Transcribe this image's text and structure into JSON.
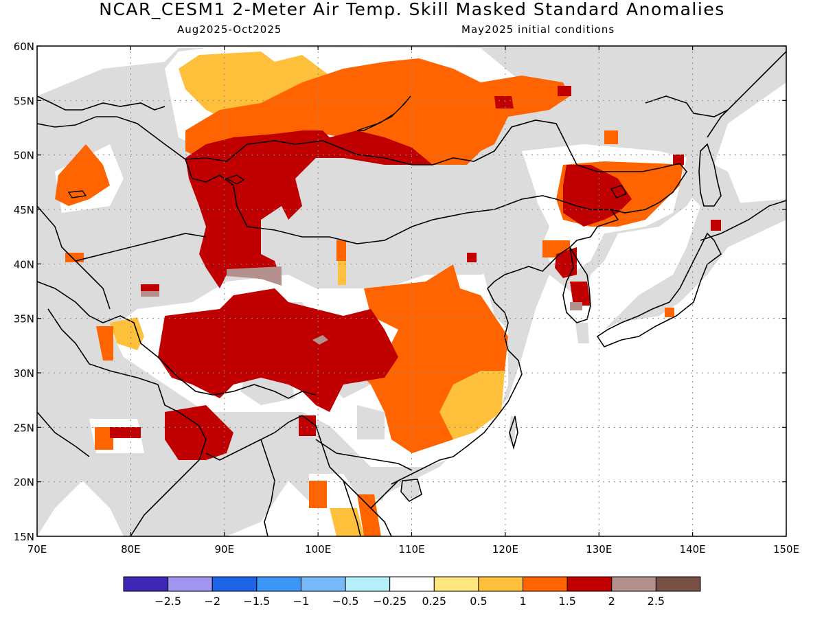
{
  "header": {
    "title": "NCAR_CESM1 2-Meter Air Temp. Skill Masked Standard Anomalies",
    "period": "Aug2025-Oct2025",
    "init": "May2025 initial conditions"
  },
  "map": {
    "lon_labels": [
      "70E",
      "80E",
      "90E",
      "100E",
      "110E",
      "120E",
      "130E",
      "140E",
      "150E"
    ],
    "lat_labels": [
      "60N",
      "55N",
      "50N",
      "45N",
      "40N",
      "35N",
      "30N",
      "25N",
      "20N",
      "15N"
    ],
    "lon_range": [
      70,
      150
    ],
    "lat_range": [
      15,
      60
    ],
    "grid": "dotted",
    "land_color": "#dcdcdc",
    "colors": {
      "a025_05": "#ffe680",
      "a05_1": "#ffc03c",
      "a1_15": "#ff6400",
      "a15_2": "#c00000",
      "a2_25": "#b4918c",
      "neutral": "#ffffff"
    }
  },
  "colorbar": {
    "colors": [
      "#3c28b4",
      "#a096f0",
      "#1e64e6",
      "#3c96f5",
      "#78b9fa",
      "#b4f0fa",
      "#ffffff",
      "#ffe680",
      "#ffc03c",
      "#ff6400",
      "#c00000",
      "#b4918c",
      "#785046"
    ],
    "labels": [
      "-2.5",
      "-2",
      "-1.5",
      "-1",
      "-0.5",
      "-0.25",
      "0.25",
      "0.5",
      "1",
      "1.5",
      "2",
      "2.5"
    ]
  }
}
